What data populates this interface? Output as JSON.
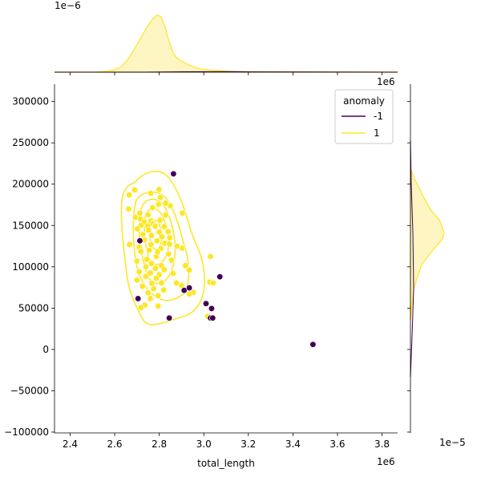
{
  "chart_data": {
    "type": "scatter",
    "title": "",
    "xlabel": "total_length",
    "ylabel": "",
    "x_offset_label": "1e6",
    "x_ticks": [
      2.4,
      2.6,
      2.8,
      3.0,
      3.2,
      3.4,
      3.6,
      3.8
    ],
    "x_tick_labels": [
      "2.4",
      "2.6",
      "2.8",
      "3.0",
      "3.2",
      "3.4",
      "3.6",
      "3.8"
    ],
    "y_ticks": [
      -100000,
      -50000,
      0,
      50000,
      100000,
      150000,
      200000,
      250000,
      300000
    ],
    "y_tick_labels": [
      "−100000",
      "−50000",
      "0",
      "50000",
      "100000",
      "150000",
      "200000",
      "250000",
      "300000"
    ],
    "xlim": [
      2.33,
      3.87
    ],
    "ylim": [
      -101000,
      321000
    ],
    "grid": false,
    "legend": {
      "title": "anomaly",
      "placement": "top-right",
      "entries": [
        {
          "label": "-1",
          "color": "#440154"
        },
        {
          "label": "1",
          "color": "#fde725"
        }
      ]
    },
    "marginal_x_label": "1e−6",
    "marginal_y_label": "1e−5",
    "marginal_x_right_label": "1e6",
    "colors": {
      "anomaly_neg": "#440154",
      "anomaly_pos": "#fde725",
      "kde_fill": "#fdf5c2"
    },
    "series": [
      {
        "name": "-1",
        "points": [
          [
            2.864,
            212500
          ],
          [
            2.713,
            131500
          ],
          [
            2.705,
            61500
          ],
          [
            2.845,
            38000
          ],
          [
            2.912,
            71500
          ],
          [
            2.935,
            74500
          ],
          [
            3.01,
            55500
          ],
          [
            3.035,
            49500
          ],
          [
            3.03,
            38000
          ],
          [
            3.04,
            38000
          ],
          [
            3.072,
            88000
          ],
          [
            3.49,
            6000
          ]
        ]
      },
      {
        "name": "1",
        "points": [
          [
            2.69,
            193000
          ],
          [
            2.799,
            193500
          ],
          [
            2.762,
            189000
          ],
          [
            2.805,
            184000
          ],
          [
            2.797,
            175500
          ],
          [
            2.77,
            171500
          ],
          [
            2.713,
            165000
          ],
          [
            2.75,
            163000
          ],
          [
            2.829,
            162500
          ],
          [
            2.693,
            160000
          ],
          [
            2.715,
            158000
          ],
          [
            2.763,
            155500
          ],
          [
            2.804,
            156500
          ],
          [
            2.733,
            154500
          ],
          [
            2.772,
            152000
          ],
          [
            2.717,
            150000
          ],
          [
            2.748,
            149500
          ],
          [
            2.782,
            149000
          ],
          [
            2.823,
            148500
          ],
          [
            2.702,
            146000
          ],
          [
            2.752,
            144500
          ],
          [
            2.8,
            142000
          ],
          [
            2.84,
            142500
          ],
          [
            2.727,
            139000
          ],
          [
            2.765,
            138000
          ],
          [
            2.812,
            136500
          ],
          [
            2.847,
            135000
          ],
          [
            2.733,
            132500
          ],
          [
            2.79,
            131500
          ],
          [
            2.825,
            128500
          ],
          [
            2.763,
            127000
          ],
          [
            2.71,
            124000
          ],
          [
            2.807,
            122000
          ],
          [
            2.755,
            120000
          ],
          [
            2.717,
            118500
          ],
          [
            2.842,
            115500
          ],
          [
            2.787,
            112500
          ],
          [
            2.736,
            108500
          ],
          [
            2.7,
            107000
          ],
          [
            2.765,
            104000
          ],
          [
            2.81,
            101500
          ],
          [
            2.74,
            100000
          ],
          [
            2.783,
            98000
          ],
          [
            2.822,
            96500
          ],
          [
            2.71,
            94000
          ],
          [
            2.76,
            92500
          ],
          [
            2.8,
            90500
          ],
          [
            2.74,
            88500
          ],
          [
            2.787,
            86000
          ],
          [
            2.7,
            84000
          ],
          [
            2.81,
            80500
          ],
          [
            2.767,
            80000
          ],
          [
            2.725,
            76500
          ],
          [
            2.775,
            73500
          ],
          [
            2.82,
            72000
          ],
          [
            2.75,
            68500
          ],
          [
            2.795,
            65000
          ],
          [
            2.76,
            61500
          ],
          [
            2.736,
            53500
          ],
          [
            2.718,
            50500
          ],
          [
            2.795,
            52500
          ],
          [
            2.665,
            187000
          ],
          [
            2.663,
            170000
          ],
          [
            2.667,
            127000
          ],
          [
            2.904,
            165000
          ],
          [
            2.903,
            122500
          ],
          [
            2.877,
            80500
          ],
          [
            2.9,
            77500
          ],
          [
            2.953,
            69000
          ],
          [
            2.918,
            101500
          ],
          [
            2.935,
            96000
          ],
          [
            2.935,
            67000
          ],
          [
            3.03,
            112500
          ],
          [
            3.027,
            81500
          ],
          [
            3.042,
            80500
          ],
          [
            3.017,
            40000
          ],
          [
            2.88,
            125000
          ],
          [
            2.855,
            108000
          ],
          [
            2.862,
            92000
          ],
          [
            2.85,
            174000
          ],
          [
            2.829,
            177000
          ],
          [
            2.846,
            127500
          ],
          [
            2.745,
            109000
          ],
          [
            2.793,
            118000
          ]
        ]
      }
    ]
  }
}
